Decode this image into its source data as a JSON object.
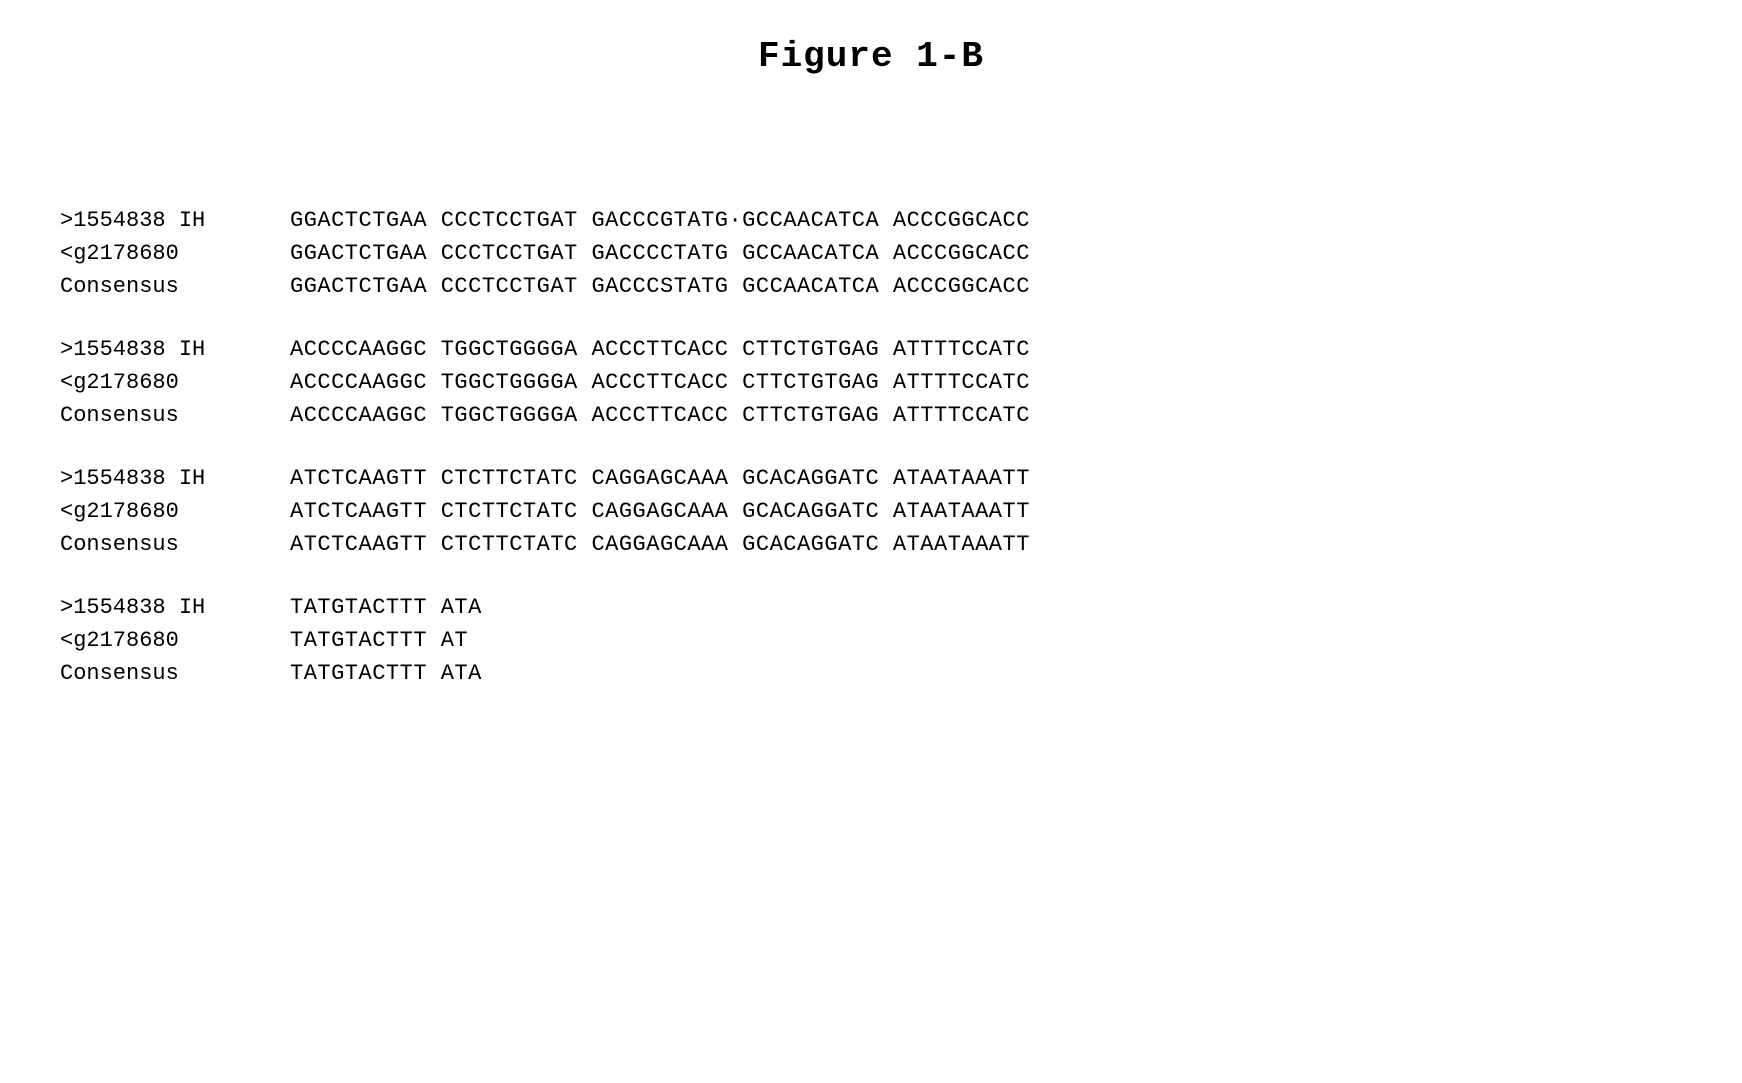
{
  "title": "Figure  1-B",
  "labels": {
    "seq1": ">1554838 IH",
    "seq2": "<g2178680",
    "consensus": "Consensus"
  },
  "blocks": [
    {
      "seq1": "GGACTCTGAA CCCTCCTGAT GACCCGTATG·GCCAACATCA ACCCGGCACC",
      "seq2": "GGACTCTGAA CCCTCCTGAT GACCCCTATG GCCAACATCA ACCCGGCACC",
      "consensus": "GGACTCTGAA CCCTCCTGAT GACCCSTATG GCCAACATCA ACCCGGCACC"
    },
    {
      "seq1": "ACCCCAAGGC TGGCTGGGGA ACCCTTCACC CTTCTGTGAG ATTTTCCATC",
      "seq2": "ACCCCAAGGC TGGCTGGGGA ACCCTTCACC CTTCTGTGAG ATTTTCCATC",
      "consensus": "ACCCCAAGGC TGGCTGGGGA ACCCTTCACC CTTCTGTGAG ATTTTCCATC"
    },
    {
      "seq1": "ATCTCAAGTT CTCTTCTATC CAGGAGCAAA GCACAGGATC ATAATAAATT",
      "seq2": "ATCTCAAGTT CTCTTCTATC CAGGAGCAAA GCACAGGATC ATAATAAATT",
      "consensus": "ATCTCAAGTT CTCTTCTATC CAGGAGCAAA GCACAGGATC ATAATAAATT"
    },
    {
      "seq1": "TATGTACTTT ATA",
      "seq2": "TATGTACTTT AT",
      "consensus": "TATGTACTTT ATA"
    }
  ]
}
